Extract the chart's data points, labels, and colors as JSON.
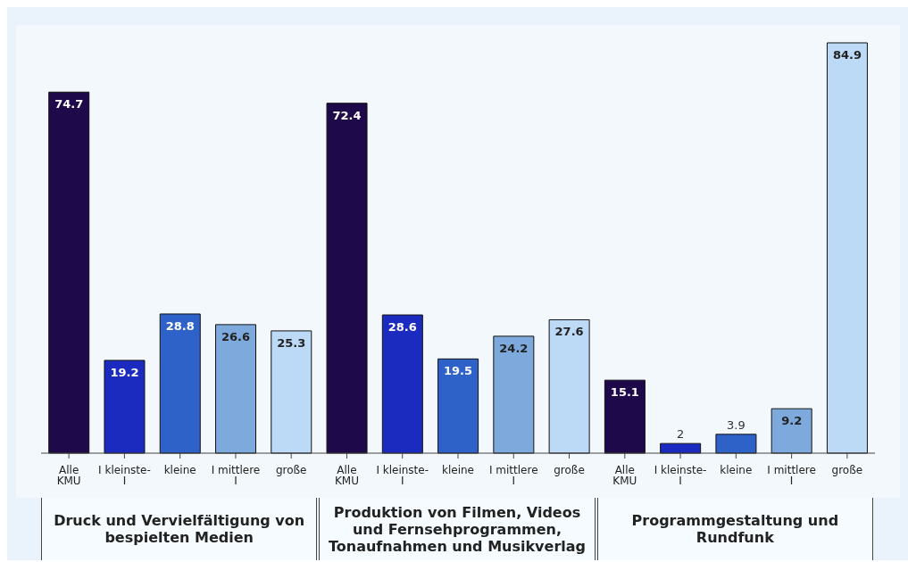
{
  "chart_data": {
    "type": "bar",
    "categories": [
      "Alle KMU",
      "I kleinste- I",
      "kleine",
      "I  mittlere I",
      "große",
      "Alle KMU",
      "I kleinste- I",
      "kleine",
      "I  mittlere I",
      "große",
      "Alle KMU",
      "I kleinste- I",
      "kleine",
      "I  mittlere I",
      "große"
    ],
    "values": [
      74.7,
      19.2,
      28.8,
      26.6,
      25.3,
      72.4,
      28.6,
      19.5,
      24.2,
      27.6,
      15.1,
      2,
      3.9,
      9.2,
      84.9
    ],
    "colors": [
      "#1e0a4a",
      "#1c2bbf",
      "#2f62c9",
      "#7ea9dc",
      "#bcd9f5",
      "#1e0a4a",
      "#1c2bbf",
      "#2f62c9",
      "#7ea9dc",
      "#bcd9f5",
      "#1e0a4a",
      "#1c2bbf",
      "#2f62c9",
      "#7ea9dc",
      "#bcd9f5"
    ],
    "data_labels": true,
    "annotations": [
      "Druck und Vervielfältigung von bespielten Medien",
      "Produktion von Filmen, Videos und Fernsehprogrammen, Tonaufnahmen und Musikverlag",
      "Programmgestaltung und Rundfunk"
    ]
  }
}
